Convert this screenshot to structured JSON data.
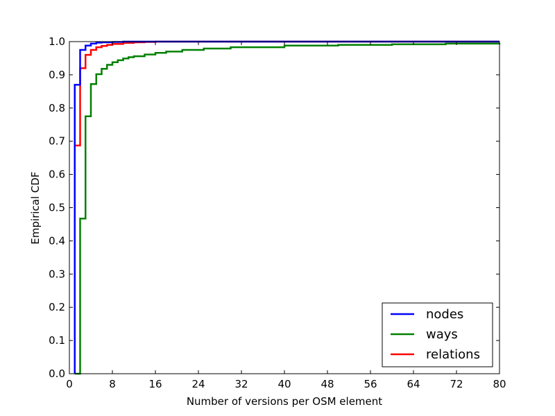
{
  "chart_data": {
    "type": "line",
    "xlabel": "Number of versions per OSM element",
    "ylabel": "Empirical CDF",
    "xlim": [
      0,
      80
    ],
    "ylim": [
      0.0,
      1.0
    ],
    "x_ticks": [
      0,
      8,
      16,
      24,
      32,
      40,
      48,
      56,
      64,
      72,
      80
    ],
    "x_tick_labels": [
      "0",
      "8",
      "16",
      "24",
      "32",
      "40",
      "48",
      "56",
      "64",
      "72",
      "80"
    ],
    "y_ticks": [
      0.0,
      0.1,
      0.2,
      0.3,
      0.4,
      0.5,
      0.6,
      0.7,
      0.8,
      0.9,
      1.0
    ],
    "y_tick_labels": [
      "0.0",
      "0.1",
      "0.2",
      "0.3",
      "0.4",
      "0.5",
      "0.6",
      "0.7",
      "0.8",
      "0.9",
      "1.0"
    ],
    "grid": false,
    "legend_position": "bottom-right",
    "series": [
      {
        "name": "nodes",
        "color": "#0000ff",
        "x": [
          1,
          2,
          3,
          4,
          5,
          6,
          8,
          10,
          80
        ],
        "y": [
          0.87,
          0.975,
          0.988,
          0.994,
          0.997,
          0.998,
          0.999,
          1.0,
          1.0
        ]
      },
      {
        "name": "ways",
        "color": "#008000",
        "x": [
          1,
          2,
          3,
          4,
          5,
          6,
          7,
          8,
          9,
          10,
          11,
          12,
          14,
          16,
          18,
          21,
          25,
          30,
          40,
          50,
          60,
          70,
          80
        ],
        "y": [
          0.0,
          0.467,
          0.775,
          0.872,
          0.902,
          0.918,
          0.93,
          0.938,
          0.944,
          0.949,
          0.953,
          0.956,
          0.961,
          0.966,
          0.97,
          0.975,
          0.979,
          0.983,
          0.988,
          0.99,
          0.992,
          0.994,
          0.995
        ]
      },
      {
        "name": "relations",
        "color": "#ff0000",
        "x": [
          1,
          2,
          3,
          4,
          5,
          6,
          7,
          8,
          10,
          12,
          14,
          16,
          80
        ],
        "y": [
          0.687,
          0.92,
          0.96,
          0.975,
          0.983,
          0.987,
          0.99,
          0.993,
          0.996,
          0.998,
          0.999,
          1.0,
          1.0
        ]
      }
    ]
  }
}
